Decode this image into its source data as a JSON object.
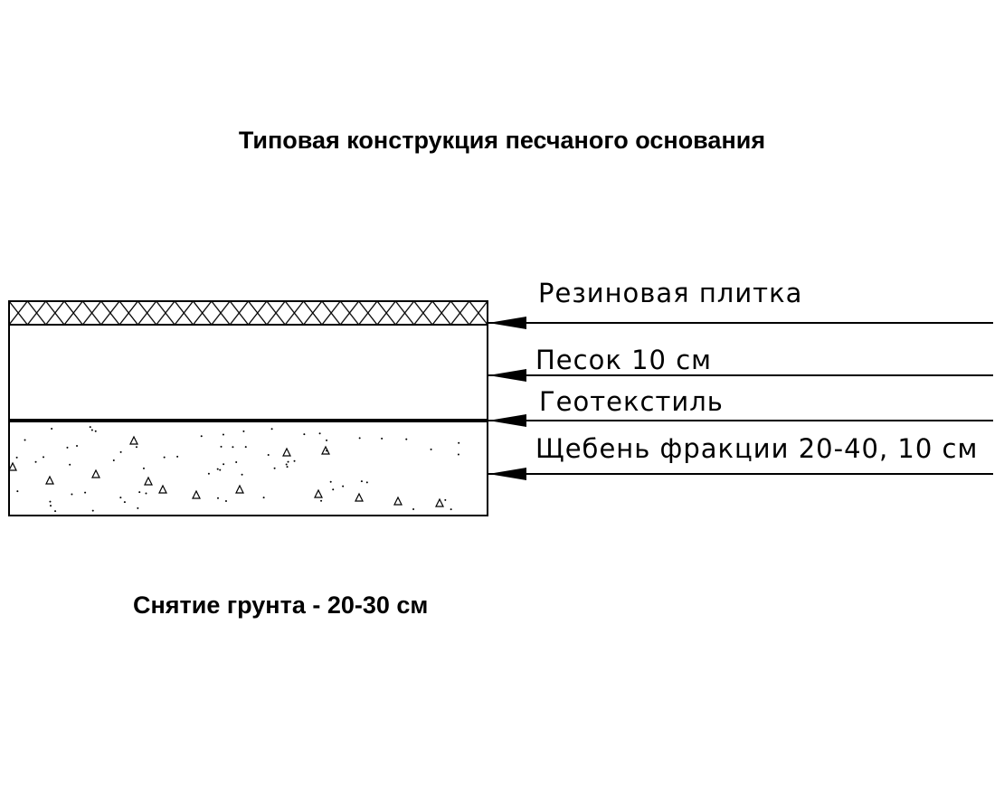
{
  "title": "Типовая конструкция песчаного основания",
  "layers": [
    {
      "label": "Резиновая плитка",
      "pattern": "crosshatch"
    },
    {
      "label": "Песок 10 см",
      "pattern": "blank"
    },
    {
      "label": "Геотекстиль",
      "pattern": "thick-line"
    },
    {
      "label": "Щебень фракции 20-40, 10 см",
      "pattern": "gravel-dots"
    }
  ],
  "note": "Снятие грунта - 20-30 см",
  "colors": {
    "line": "#000000",
    "background": "#ffffff"
  }
}
